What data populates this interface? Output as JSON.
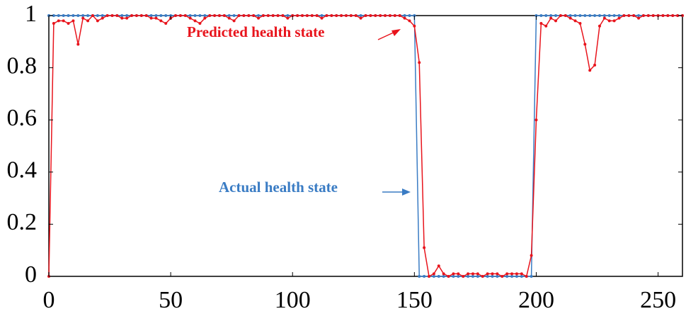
{
  "chart_data": {
    "type": "line",
    "x": [
      0,
      2,
      4,
      6,
      8,
      10,
      12,
      14,
      16,
      18,
      20,
      22,
      24,
      26,
      28,
      30,
      32,
      34,
      36,
      38,
      40,
      42,
      44,
      46,
      48,
      50,
      52,
      54,
      56,
      58,
      60,
      62,
      64,
      66,
      68,
      70,
      72,
      74,
      76,
      78,
      80,
      82,
      84,
      86,
      88,
      90,
      92,
      94,
      96,
      98,
      100,
      102,
      104,
      106,
      108,
      110,
      112,
      114,
      116,
      118,
      120,
      122,
      124,
      126,
      128,
      130,
      132,
      134,
      136,
      138,
      140,
      142,
      144,
      146,
      148,
      150,
      152,
      154,
      156,
      158,
      160,
      162,
      164,
      166,
      168,
      170,
      172,
      174,
      176,
      178,
      180,
      182,
      184,
      186,
      188,
      190,
      192,
      194,
      196,
      198,
      200,
      202,
      204,
      206,
      208,
      210,
      212,
      214,
      216,
      218,
      220,
      222,
      224,
      226,
      228,
      230,
      232,
      234,
      236,
      238,
      240,
      242,
      244,
      246,
      248,
      250,
      252,
      254,
      256,
      258,
      260
    ],
    "series": [
      {
        "name": "Actual health state",
        "color": "#3a7cc4",
        "values": [
          1,
          1,
          1,
          1,
          1,
          1,
          1,
          1,
          1,
          1,
          1,
          1,
          1,
          1,
          1,
          1,
          1,
          1,
          1,
          1,
          1,
          1,
          1,
          1,
          1,
          1,
          1,
          1,
          1,
          1,
          1,
          1,
          1,
          1,
          1,
          1,
          1,
          1,
          1,
          1,
          1,
          1,
          1,
          1,
          1,
          1,
          1,
          1,
          1,
          1,
          1,
          1,
          1,
          1,
          1,
          1,
          1,
          1,
          1,
          1,
          1,
          1,
          1,
          1,
          1,
          1,
          1,
          1,
          1,
          1,
          1,
          1,
          1,
          1,
          1,
          1,
          0,
          0,
          0,
          0,
          0,
          0,
          0,
          0,
          0,
          0,
          0,
          0,
          0,
          0,
          0,
          0,
          0,
          0,
          0,
          0,
          0,
          0,
          0,
          0,
          1,
          1,
          1,
          1,
          1,
          1,
          1,
          1,
          1,
          1,
          1,
          1,
          1,
          1,
          1,
          1,
          1,
          1,
          1,
          1,
          1,
          1,
          1,
          1,
          1,
          1,
          1,
          1,
          1,
          1,
          1
        ]
      },
      {
        "name": "Predicted health state",
        "color": "#e8141c",
        "values": [
          0,
          0.97,
          0.98,
          0.98,
          0.97,
          0.98,
          0.89,
          0.99,
          0.98,
          1,
          0.98,
          0.99,
          1,
          1,
          1,
          0.99,
          0.99,
          1,
          1,
          1,
          1,
          0.99,
          0.99,
          0.98,
          0.97,
          0.99,
          1,
          1,
          1,
          0.99,
          0.98,
          0.97,
          0.99,
          1,
          1,
          1,
          1,
          0.99,
          0.98,
          1,
          1,
          1,
          1,
          0.99,
          1,
          1,
          1,
          1,
          1,
          0.99,
          1,
          1,
          1,
          1,
          1,
          1,
          0.99,
          1,
          1,
          1,
          1,
          1,
          1,
          1,
          0.99,
          1,
          1,
          1,
          1,
          1,
          1,
          1,
          1,
          0.99,
          0.98,
          0.96,
          0.82,
          0.11,
          0,
          0.01,
          0.04,
          0.01,
          0,
          0.01,
          0.01,
          0,
          0.01,
          0.01,
          0.01,
          0,
          0.01,
          0.01,
          0.01,
          0,
          0.01,
          0.01,
          0.01,
          0.01,
          0,
          0.08,
          0.6,
          0.97,
          0.96,
          0.99,
          0.98,
          1,
          1,
          0.99,
          0.98,
          0.97,
          0.89,
          0.79,
          0.81,
          0.96,
          0.99,
          0.98,
          0.98,
          0.99,
          1,
          1,
          1,
          0.99,
          1,
          1,
          1,
          1,
          1,
          1,
          1,
          1,
          1
        ]
      }
    ],
    "annotations": [
      "Predicted health state",
      "Actual health state"
    ],
    "xlim": [
      0,
      260
    ],
    "xticks": [
      0,
      50,
      100,
      150,
      200,
      250
    ],
    "ylim": [
      0,
      1
    ],
    "yticks": [
      0,
      0.2,
      0.4,
      0.6,
      0.8,
      1
    ]
  }
}
